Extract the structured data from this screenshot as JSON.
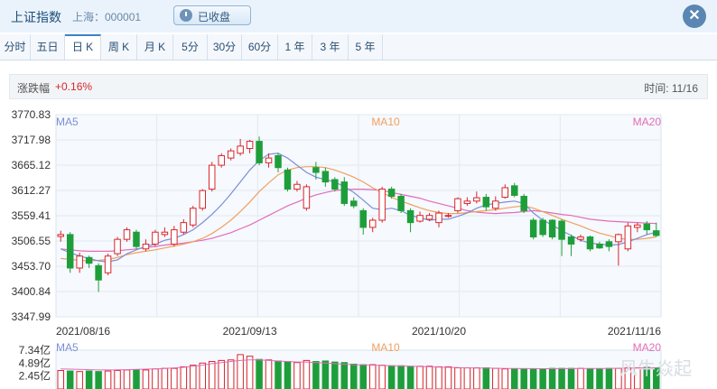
{
  "header": {
    "title": "上证指数",
    "subtitle": "上海：000001",
    "status_label": "已收盘",
    "close_label": "✕"
  },
  "tabs": [
    {
      "label": "分时"
    },
    {
      "label": "五日"
    },
    {
      "label": "日 K"
    },
    {
      "label": "周 K"
    },
    {
      "label": "月 K"
    },
    {
      "label": "5分"
    },
    {
      "label": "30分"
    },
    {
      "label": "60分"
    },
    {
      "label": "1 年"
    },
    {
      "label": "3 年"
    },
    {
      "label": "5 年"
    }
  ],
  "active_tab": 2,
  "info": {
    "change_label": "涨跌幅",
    "change_value": "+0.16%",
    "time_label": "时间: 11/16"
  },
  "watermark": "风牛焱起",
  "colors": {
    "up": "#d9262c",
    "down": "#1e9e3a",
    "ma5": "#7b8fd6",
    "ma10": "#f0a060",
    "ma20": "#e26cb8"
  },
  "chart_data": [
    {
      "type": "candlestick",
      "y_ticks": [
        "3770.83",
        "3717.98",
        "3665.12",
        "3612.27",
        "3559.41",
        "3506.55",
        "3453.70",
        "3400.84",
        "3347.99"
      ],
      "ylim": [
        3347.99,
        3770.83
      ],
      "x_tick_labels": [
        {
          "label": "2021/08/16",
          "index": 0
        },
        {
          "label": "2021/09/13",
          "index": 20
        },
        {
          "label": "2021/10/20",
          "index": 40
        },
        {
          "label": "2021/11/16",
          "index": 60
        }
      ],
      "legend": [
        "MA5",
        "MA10",
        "MA20"
      ],
      "legend_placement": "top",
      "grid": true,
      "candles": [
        [
          3516,
          3520,
          3528,
          3505
        ],
        [
          3520,
          3450,
          3525,
          3440
        ],
        [
          3450,
          3475,
          3482,
          3440
        ],
        [
          3472,
          3460,
          3476,
          3450
        ],
        [
          3455,
          3425,
          3460,
          3400
        ],
        [
          3440,
          3475,
          3480,
          3435
        ],
        [
          3480,
          3510,
          3515,
          3475
        ],
        [
          3510,
          3530,
          3535,
          3505
        ],
        [
          3525,
          3495,
          3530,
          3490
        ],
        [
          3490,
          3500,
          3510,
          3485
        ],
        [
          3500,
          3525,
          3530,
          3495
        ],
        [
          3520,
          3525,
          3535,
          3515
        ],
        [
          3500,
          3530,
          3538,
          3495
        ],
        [
          3525,
          3545,
          3552,
          3520
        ],
        [
          3540,
          3575,
          3580,
          3535
        ],
        [
          3575,
          3612,
          3615,
          3570
        ],
        [
          3615,
          3665,
          3672,
          3610
        ],
        [
          3665,
          3685,
          3690,
          3660
        ],
        [
          3680,
          3695,
          3700,
          3675
        ],
        [
          3690,
          3705,
          3720,
          3685
        ],
        [
          3700,
          3715,
          3718,
          3690
        ],
        [
          3715,
          3670,
          3725,
          3665
        ],
        [
          3670,
          3680,
          3690,
          3660
        ],
        [
          3685,
          3660,
          3690,
          3650
        ],
        [
          3655,
          3615,
          3660,
          3610
        ],
        [
          3615,
          3625,
          3632,
          3610
        ],
        [
          3575,
          3620,
          3625,
          3570
        ],
        [
          3660,
          3650,
          3672,
          3635
        ],
        [
          3652,
          3630,
          3660,
          3620
        ],
        [
          3635,
          3615,
          3640,
          3610
        ],
        [
          3630,
          3585,
          3640,
          3580
        ],
        [
          3590,
          3580,
          3598,
          3575
        ],
        [
          3570,
          3535,
          3575,
          3520
        ],
        [
          3535,
          3550,
          3555,
          3525
        ],
        [
          3550,
          3615,
          3620,
          3545
        ],
        [
          3615,
          3600,
          3620,
          3595
        ],
        [
          3600,
          3570,
          3605,
          3565
        ],
        [
          3570,
          3545,
          3575,
          3525
        ],
        [
          3548,
          3560,
          3568,
          3545
        ],
        [
          3552,
          3560,
          3565,
          3548
        ],
        [
          3545,
          3565,
          3570,
          3535
        ],
        [
          3558,
          3560,
          3565,
          3555
        ],
        [
          3570,
          3595,
          3598,
          3565
        ],
        [
          3585,
          3590,
          3598,
          3580
        ],
        [
          3590,
          3597,
          3610,
          3585
        ],
        [
          3598,
          3578,
          3605,
          3570
        ],
        [
          3575,
          3590,
          3600,
          3570
        ],
        [
          3598,
          3618,
          3625,
          3595
        ],
        [
          3622,
          3602,
          3628,
          3598
        ],
        [
          3600,
          3570,
          3605,
          3565
        ],
        [
          3550,
          3515,
          3555,
          3510
        ],
        [
          3550,
          3520,
          3555,
          3515
        ],
        [
          3550,
          3515,
          3552,
          3510
        ],
        [
          3548,
          3510,
          3552,
          3475
        ],
        [
          3515,
          3500,
          3520,
          3475
        ],
        [
          3510,
          3515,
          3520,
          3505
        ],
        [
          3515,
          3490,
          3518,
          3485
        ],
        [
          3500,
          3492,
          3505,
          3490
        ],
        [
          3505,
          3495,
          3510,
          3485
        ],
        [
          3505,
          3520,
          3522,
          3455
        ],
        [
          3490,
          3538,
          3545,
          3485
        ],
        [
          3535,
          3540,
          3545,
          3525
        ],
        [
          3542,
          3530,
          3548,
          3520
        ],
        [
          3528,
          3518,
          3545,
          3515
        ]
      ],
      "ma5": [
        3490,
        3482,
        3475,
        3470,
        3465,
        3463,
        3467,
        3480,
        3488,
        3495,
        3500,
        3508,
        3512,
        3520,
        3530,
        3545,
        3562,
        3582,
        3605,
        3630,
        3655,
        3675,
        3688,
        3690,
        3680,
        3665,
        3650,
        3640,
        3635,
        3630,
        3620,
        3608,
        3592,
        3575,
        3572,
        3575,
        3570,
        3560,
        3555,
        3550,
        3552,
        3552,
        3558,
        3565,
        3575,
        3582,
        3585,
        3588,
        3590,
        3585,
        3565,
        3550,
        3540,
        3528,
        3518,
        3508,
        3502,
        3500,
        3498,
        3499,
        3505,
        3512,
        3520,
        3525
      ],
      "ma10": [
        3470,
        3468,
        3466,
        3465,
        3466,
        3468,
        3472,
        3478,
        3482,
        3485,
        3488,
        3492,
        3496,
        3500,
        3505,
        3512,
        3522,
        3535,
        3550,
        3568,
        3588,
        3610,
        3628,
        3645,
        3655,
        3660,
        3662,
        3662,
        3660,
        3655,
        3648,
        3640,
        3630,
        3618,
        3608,
        3598,
        3590,
        3583,
        3576,
        3570,
        3566,
        3564,
        3564,
        3566,
        3568,
        3570,
        3572,
        3575,
        3578,
        3580,
        3575,
        3568,
        3560,
        3552,
        3545,
        3538,
        3530,
        3523,
        3518,
        3512,
        3510,
        3510,
        3512,
        3515
      ],
      "ma20": [
        3490,
        3488,
        3486,
        3485,
        3485,
        3485,
        3486,
        3488,
        3490,
        3493,
        3495,
        3498,
        3500,
        3502,
        3505,
        3508,
        3512,
        3518,
        3524,
        3532,
        3540,
        3550,
        3560,
        3570,
        3580,
        3588,
        3596,
        3603,
        3608,
        3612,
        3614,
        3615,
        3615,
        3614,
        3612,
        3608,
        3604,
        3600,
        3596,
        3590,
        3585,
        3580,
        3575,
        3570,
        3567,
        3565,
        3564,
        3565,
        3566,
        3568,
        3570,
        3568,
        3565,
        3562,
        3560,
        3556,
        3552,
        3550,
        3548,
        3547,
        3546,
        3545,
        3544,
        3543
      ]
    },
    {
      "type": "bar",
      "title": "volume",
      "y_ticks": [
        "7.34亿",
        "4.89亿",
        "2.45亿"
      ],
      "ylim": [
        0,
        7.34
      ],
      "legend": [
        "MA5",
        "MA10",
        "MA20"
      ],
      "values": [
        3.5,
        3.4,
        3.3,
        3.4,
        3.3,
        3.4,
        3.5,
        3.6,
        3.6,
        3.6,
        3.8,
        3.9,
        3.9,
        4.2,
        4.5,
        4.9,
        5.2,
        5.4,
        5.5,
        6.5,
        6.2,
        5.6,
        5.5,
        5.3,
        5.2,
        5.0,
        5.4,
        5.2,
        5.3,
        5.1,
        5.0,
        4.7,
        4.6,
        4.6,
        4.5,
        4.4,
        4.4,
        4.3,
        4.3,
        4.3,
        4.2,
        4.2,
        4.0,
        4.0,
        4.0,
        4.0,
        3.9,
        3.8,
        3.8,
        3.8,
        3.8,
        3.8,
        3.9,
        3.9,
        3.9,
        3.9,
        3.8,
        3.8,
        3.9,
        3.9,
        4.0,
        4.0,
        4.1,
        4.0
      ],
      "directions": [
        1,
        0,
        1,
        0,
        0,
        1,
        1,
        1,
        0,
        1,
        1,
        1,
        1,
        1,
        1,
        1,
        1,
        1,
        1,
        1,
        1,
        0,
        1,
        0,
        0,
        1,
        1,
        0,
        0,
        0,
        0,
        0,
        0,
        1,
        1,
        0,
        0,
        0,
        1,
        1,
        1,
        1,
        1,
        1,
        1,
        0,
        1,
        1,
        0,
        0,
        0,
        0,
        0,
        0,
        0,
        1,
        0,
        0,
        0,
        1,
        1,
        1,
        0,
        0
      ],
      "ma5": [
        3.8,
        3.75,
        3.7,
        3.65,
        3.6,
        3.6,
        3.62,
        3.65,
        3.7,
        3.75,
        3.8,
        3.9,
        4.0,
        4.1,
        4.3,
        4.5,
        4.8,
        5.0,
        5.2,
        5.4,
        5.5,
        5.5,
        5.4,
        5.3,
        5.2,
        5.1,
        5.1,
        5.0,
        4.9,
        4.8,
        4.7,
        4.6,
        4.55,
        4.5,
        4.45,
        4.4,
        4.35,
        4.3,
        4.25,
        4.2,
        4.15,
        4.1,
        4.05,
        4.0,
        3.98,
        3.95,
        3.93,
        3.9,
        3.88,
        3.86,
        3.85,
        3.84,
        3.84,
        3.85,
        3.86,
        3.87,
        3.88,
        3.89,
        3.9,
        3.92,
        3.95,
        3.98,
        4.0,
        4.0
      ]
    }
  ]
}
